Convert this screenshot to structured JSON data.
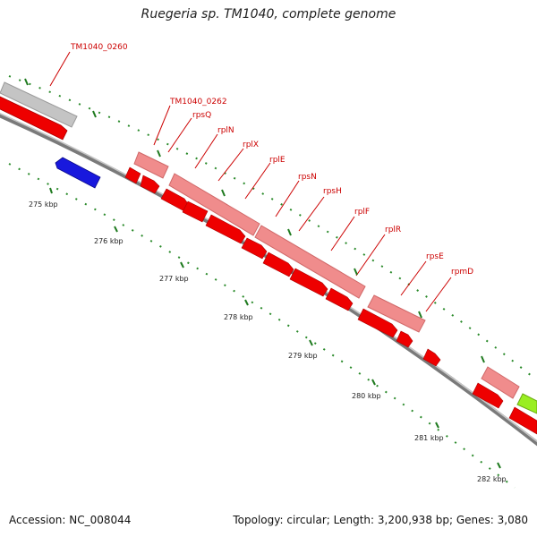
{
  "title": "Ruegeria sp. TM1040, complete genome",
  "footer": {
    "accession": "Accession: NC_008044",
    "stats": "Topology: circular; Length: 3,200,938 bp; Genes: 3,080"
  },
  "gene_labels": [
    "TM1040_0260",
    "TM1040_0262",
    "rpsQ",
    "rplN",
    "rplX",
    "rplE",
    "rpsN",
    "rpsH",
    "rplF",
    "rplR",
    "rpsE",
    "rpmD"
  ],
  "kbp_labels": [
    "275 kbp",
    "276 kbp",
    "277 kbp",
    "278 kbp",
    "279 kbp",
    "280 kbp",
    "281 kbp",
    "282 kbp"
  ],
  "colors": {
    "backbone": "#8a8a8a",
    "cds": "#ee0000",
    "gene": "#f08c8c",
    "tick": "#1f7a1f",
    "reverse_cds": "#1111dd",
    "trna_like": "#9aee22",
    "label": "#cc0000"
  },
  "icons": [
    "forward-arrow-icon",
    "reverse-arrow-icon"
  ]
}
